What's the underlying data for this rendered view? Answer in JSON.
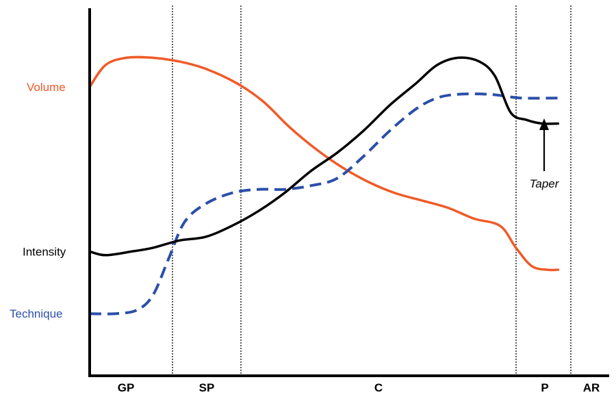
{
  "chart_data": {
    "type": "line",
    "title": "",
    "xlabel": "",
    "ylabel": "",
    "grid": false,
    "phases": [
      "GP",
      "SP",
      "C",
      "P",
      "AR"
    ],
    "series": [
      {
        "name": "Volume",
        "color": "#f05a28",
        "style": "solid",
        "points": [
          [
            0,
            0.79
          ],
          [
            0.03,
            0.85
          ],
          [
            0.07,
            0.87
          ],
          [
            0.12,
            0.87
          ],
          [
            0.17,
            0.86
          ],
          [
            0.22,
            0.84
          ],
          [
            0.28,
            0.8
          ],
          [
            0.33,
            0.75
          ],
          [
            0.38,
            0.68
          ],
          [
            0.43,
            0.62
          ],
          [
            0.48,
            0.57
          ],
          [
            0.53,
            0.53
          ],
          [
            0.58,
            0.5
          ],
          [
            0.63,
            0.48
          ],
          [
            0.68,
            0.46
          ],
          [
            0.73,
            0.43
          ],
          [
            0.78,
            0.41
          ],
          [
            0.81,
            0.35
          ],
          [
            0.84,
            0.3
          ],
          [
            0.87,
            0.29
          ],
          [
            0.89,
            0.29
          ]
        ]
      },
      {
        "name": "Intensity",
        "color": "#000000",
        "style": "solid",
        "points": [
          [
            0,
            0.34
          ],
          [
            0.03,
            0.33
          ],
          [
            0.08,
            0.34
          ],
          [
            0.12,
            0.35
          ],
          [
            0.17,
            0.37
          ],
          [
            0.22,
            0.38
          ],
          [
            0.27,
            0.41
          ],
          [
            0.32,
            0.45
          ],
          [
            0.37,
            0.5
          ],
          [
            0.42,
            0.56
          ],
          [
            0.47,
            0.61
          ],
          [
            0.52,
            0.67
          ],
          [
            0.57,
            0.74
          ],
          [
            0.62,
            0.8
          ],
          [
            0.66,
            0.85
          ],
          [
            0.7,
            0.87
          ],
          [
            0.74,
            0.86
          ],
          [
            0.77,
            0.82
          ],
          [
            0.8,
            0.72
          ],
          [
            0.83,
            0.7
          ],
          [
            0.86,
            0.69
          ],
          [
            0.89,
            0.69
          ]
        ]
      },
      {
        "name": "Technique",
        "color": "#2b4fa9",
        "style": "dashed",
        "points": [
          [
            0,
            0.17
          ],
          [
            0.05,
            0.17
          ],
          [
            0.09,
            0.18
          ],
          [
            0.12,
            0.22
          ],
          [
            0.15,
            0.32
          ],
          [
            0.18,
            0.42
          ],
          [
            0.22,
            0.47
          ],
          [
            0.27,
            0.5
          ],
          [
            0.32,
            0.51
          ],
          [
            0.37,
            0.51
          ],
          [
            0.42,
            0.52
          ],
          [
            0.47,
            0.54
          ],
          [
            0.52,
            0.6
          ],
          [
            0.57,
            0.67
          ],
          [
            0.62,
            0.73
          ],
          [
            0.66,
            0.76
          ],
          [
            0.7,
            0.77
          ],
          [
            0.76,
            0.77
          ],
          [
            0.82,
            0.76
          ],
          [
            0.89,
            0.76
          ]
        ]
      }
    ],
    "annotations": [
      {
        "text": "Taper"
      }
    ]
  },
  "colors": {
    "axis": "#000000",
    "divider": "#000000"
  }
}
